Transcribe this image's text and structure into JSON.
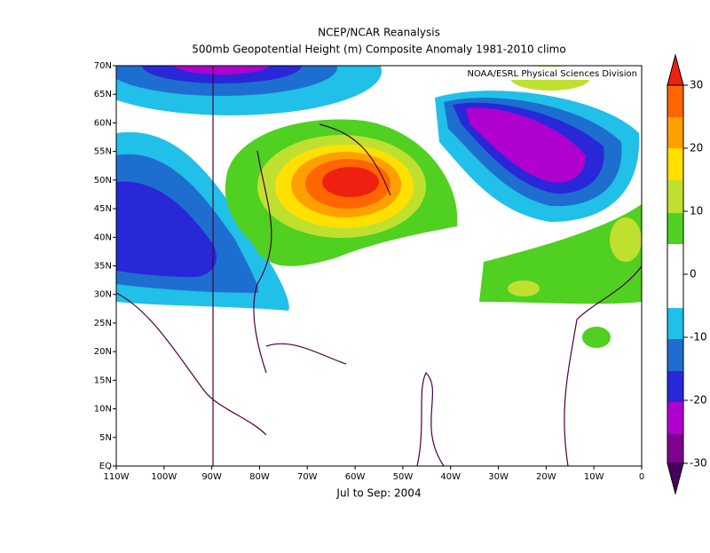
{
  "header": {
    "title": "NCEP/NCAR Reanalysis",
    "subtitle": "500mb Geopotential Height (m) Composite Anomaly 1981-2010 climo"
  },
  "map": {
    "credit": "NOAA/ESRL Physical Sciences Division",
    "period": "Jul to Sep: 2004",
    "lat_labels": [
      "70N",
      "65N",
      "60N",
      "55N",
      "50N",
      "45N",
      "40N",
      "35N",
      "30N",
      "25N",
      "20N",
      "15N",
      "10N",
      "5N",
      "EQ"
    ],
    "lon_labels": [
      "110W",
      "100W",
      "90W",
      "80W",
      "70W",
      "60W",
      "50W",
      "40W",
      "30W",
      "20W",
      "10W",
      "0"
    ]
  },
  "colorbar": {
    "labels": [
      "30",
      "20",
      "10",
      "0",
      "-10",
      "-20",
      "-30"
    ]
  }
}
